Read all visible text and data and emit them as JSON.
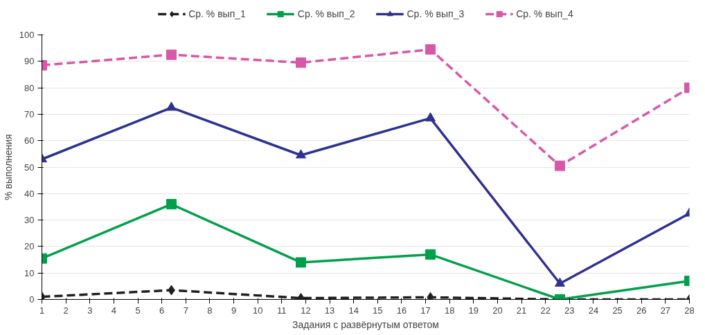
{
  "chart_data": {
    "type": "line",
    "xlabel": "Задания с развёрнутым ответом",
    "ylabel": "% выполнения",
    "x": [
      1,
      6.4,
      11.8,
      17.2,
      22.6,
      28
    ],
    "xlim": [
      1,
      28
    ],
    "xticks": [
      1,
      2,
      3,
      4,
      5,
      6,
      7,
      8,
      9,
      10,
      11,
      12,
      13,
      14,
      15,
      16,
      17,
      18,
      19,
      20,
      21,
      22,
      23,
      24,
      25,
      26,
      27,
      28
    ],
    "ylim": [
      0,
      100
    ],
    "yticks": [
      0,
      10,
      20,
      30,
      40,
      50,
      60,
      70,
      80,
      90,
      100
    ],
    "grid": "y",
    "legend": "top",
    "series": [
      {
        "name": "Ср. % вып_1",
        "color": "#231f20",
        "marker": "diamond",
        "line_style": "dashed",
        "values": [
          1,
          3.5,
          0.5,
          0.8,
          0,
          0
        ]
      },
      {
        "name": "Ср. % вып_2",
        "color": "#00a04b",
        "marker": "square",
        "line_style": "solid",
        "values": [
          15.5,
          36,
          14,
          17,
          0,
          7
        ]
      },
      {
        "name": "Ср. % вып_3",
        "color": "#2e3192",
        "marker": "triangle",
        "line_style": "solid",
        "values": [
          53,
          72.5,
          54.5,
          68.5,
          6,
          32.5
        ]
      },
      {
        "name": "Ср. % вып_4",
        "color": "#d957a8",
        "marker": "square",
        "line_style": "dashed",
        "values": [
          88.5,
          92.5,
          89.5,
          94.5,
          50.5,
          80
        ]
      }
    ]
  }
}
